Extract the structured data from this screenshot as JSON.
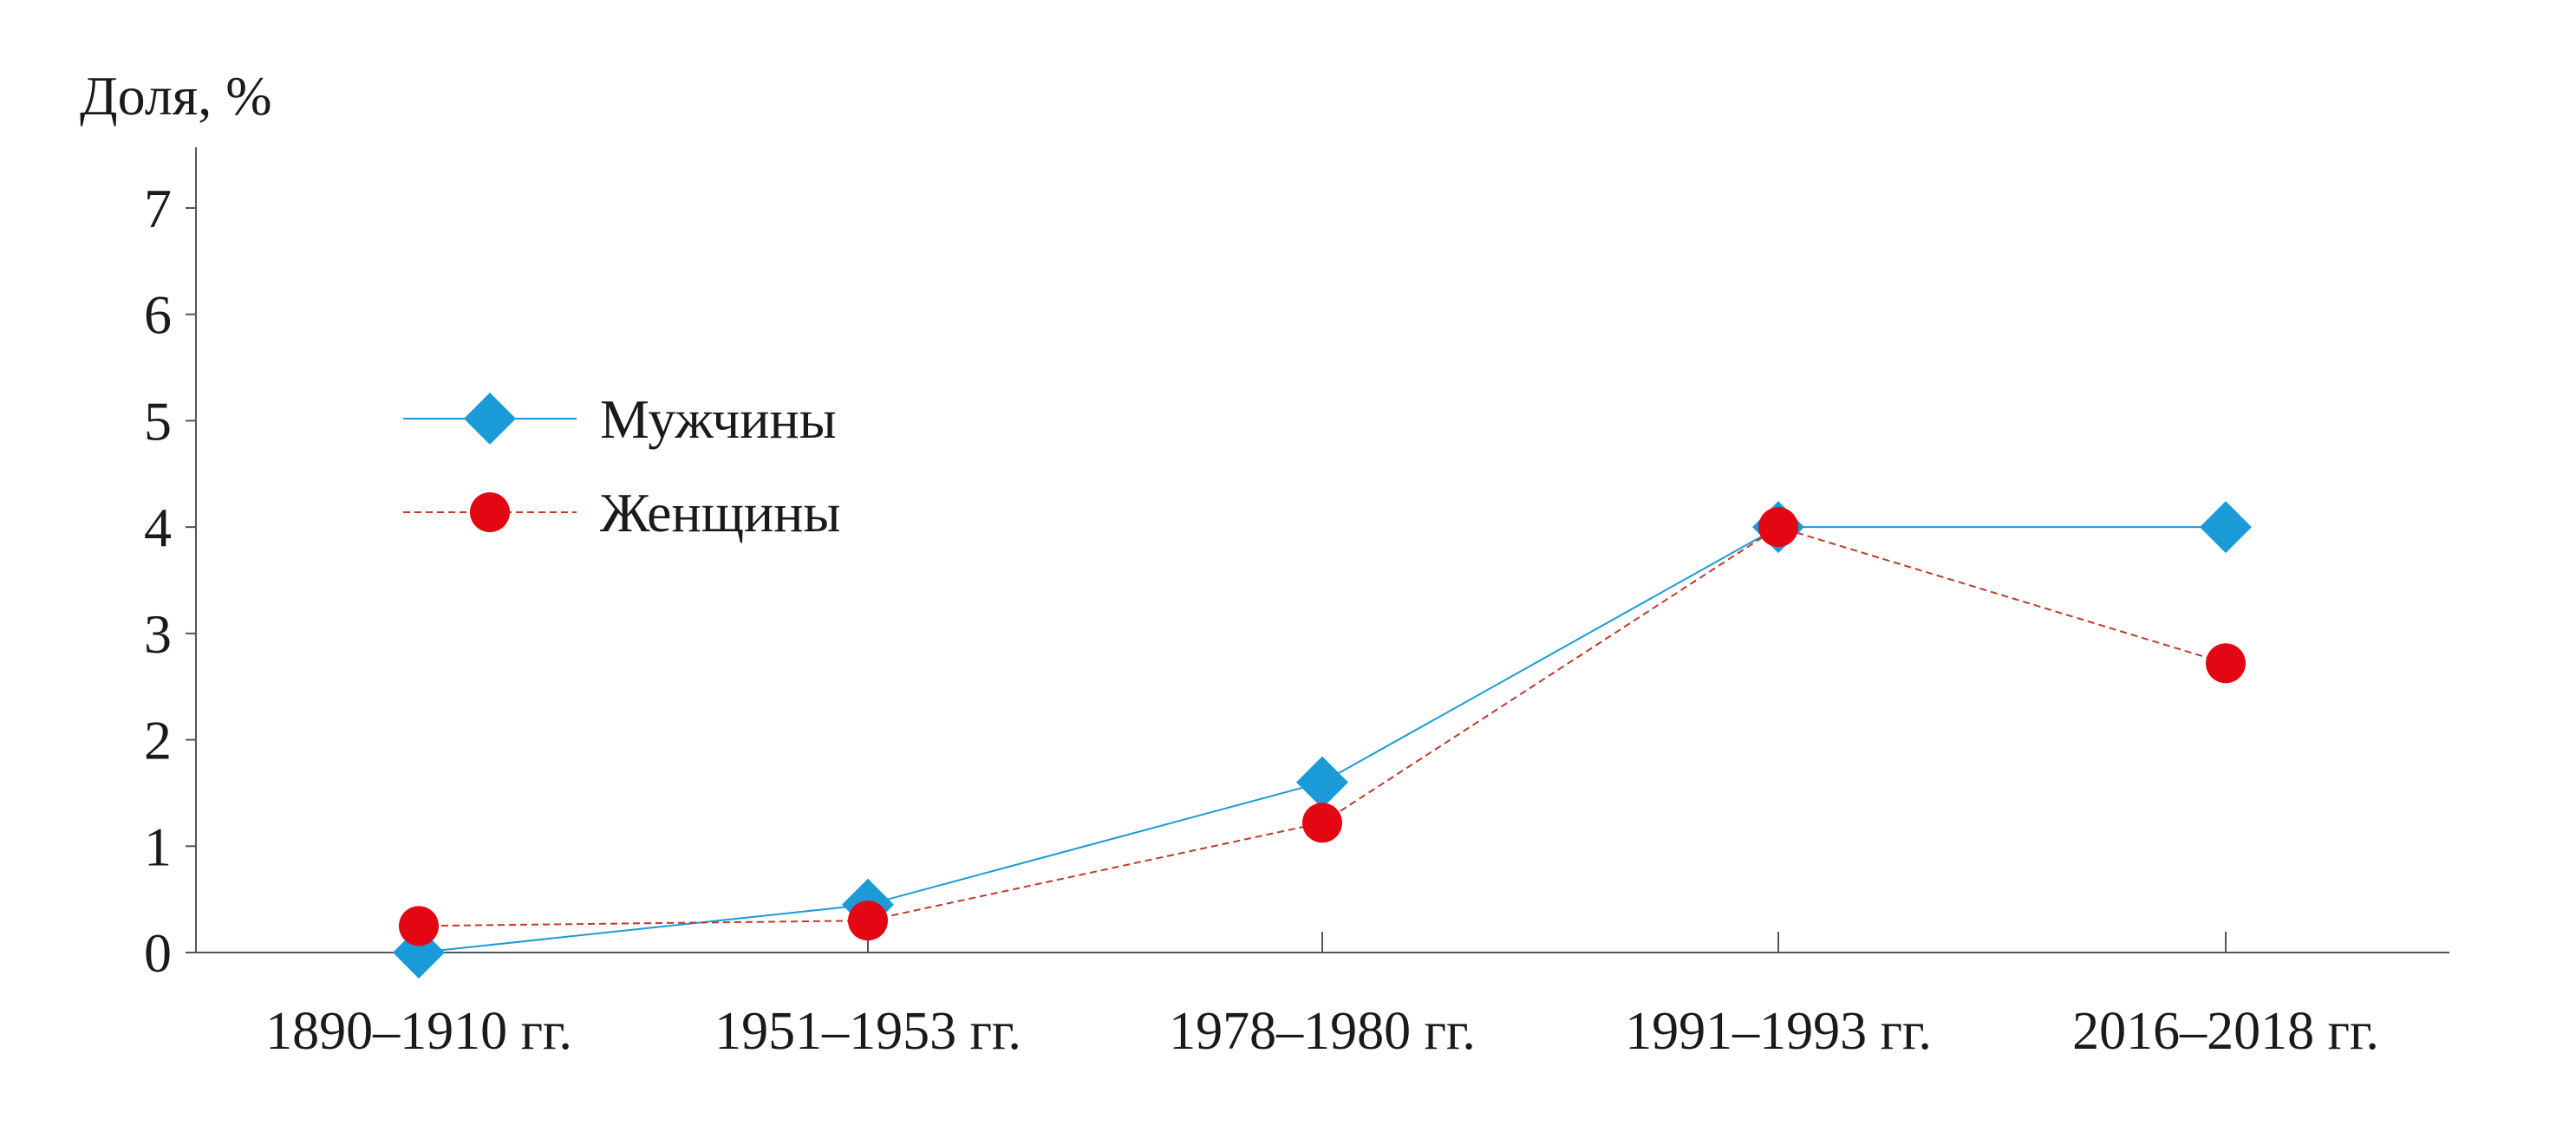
{
  "chart_data": {
    "type": "line",
    "title": "",
    "ylabel": "Доля, %",
    "xlabel": "",
    "categories": [
      "1890–1910 гг.",
      "1951–1953 гг.",
      "1978–1980 гг.",
      "1991–1993 гг.",
      "2016–2018 гг."
    ],
    "ylim": [
      0,
      7.5
    ],
    "yticks": [
      0,
      1,
      2,
      3,
      4,
      5,
      6,
      7
    ],
    "grid": false,
    "legend_position": "upper-left",
    "series": [
      {
        "name": "Мужчины",
        "values": [
          0.0,
          0.45,
          1.6,
          4.0,
          4.0
        ],
        "color": "#1a9bd7",
        "marker": "diamond",
        "line_style": "solid"
      },
      {
        "name": "Женщины",
        "values": [
          0.25,
          0.3,
          1.22,
          4.0,
          2.72
        ],
        "color": "#e30613",
        "line_color": "#c0392b",
        "marker": "circle",
        "line_style": "dashed"
      }
    ]
  }
}
